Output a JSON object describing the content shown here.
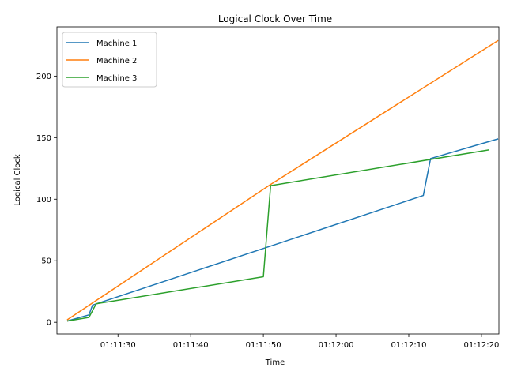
{
  "chart_data": {
    "type": "line",
    "title": "Logical Clock Over Time",
    "xlabel": "Time",
    "ylabel": "Logical Clock",
    "x_unit": "seconds after 01:11:00",
    "xlim": [
      21.6,
      82.4
    ],
    "ylim": [
      -9.5,
      240
    ],
    "x_ticks": [
      {
        "value": 30,
        "label": "01:11:30"
      },
      {
        "value": 40,
        "label": "01:11:40"
      },
      {
        "value": 50,
        "label": "01:11:50"
      },
      {
        "value": 60,
        "label": "01:12:00"
      },
      {
        "value": 70,
        "label": "01:12:10"
      },
      {
        "value": 80,
        "label": "01:12:20"
      }
    ],
    "y_ticks": [
      {
        "value": 0,
        "label": "0"
      },
      {
        "value": 50,
        "label": "50"
      },
      {
        "value": 100,
        "label": "100"
      },
      {
        "value": 150,
        "label": "150"
      },
      {
        "value": 200,
        "label": "200"
      }
    ],
    "legend_position": "top-left",
    "series": [
      {
        "name": "Machine 1",
        "color": "#1f77b4",
        "points": [
          [
            23,
            1
          ],
          [
            26,
            6
          ],
          [
            26.5,
            14
          ],
          [
            72,
            103
          ],
          [
            73,
            133
          ],
          [
            82.3,
            149
          ]
        ]
      },
      {
        "name": "Machine 2",
        "color": "#ff7f0e",
        "points": [
          [
            23,
            2
          ],
          [
            51,
            112
          ],
          [
            82.3,
            229
          ]
        ]
      },
      {
        "name": "Machine 3",
        "color": "#2ca02c",
        "points": [
          [
            23,
            1
          ],
          [
            26,
            4
          ],
          [
            27,
            15
          ],
          [
            50,
            37
          ],
          [
            51,
            111
          ],
          [
            81,
            140
          ]
        ]
      }
    ]
  }
}
